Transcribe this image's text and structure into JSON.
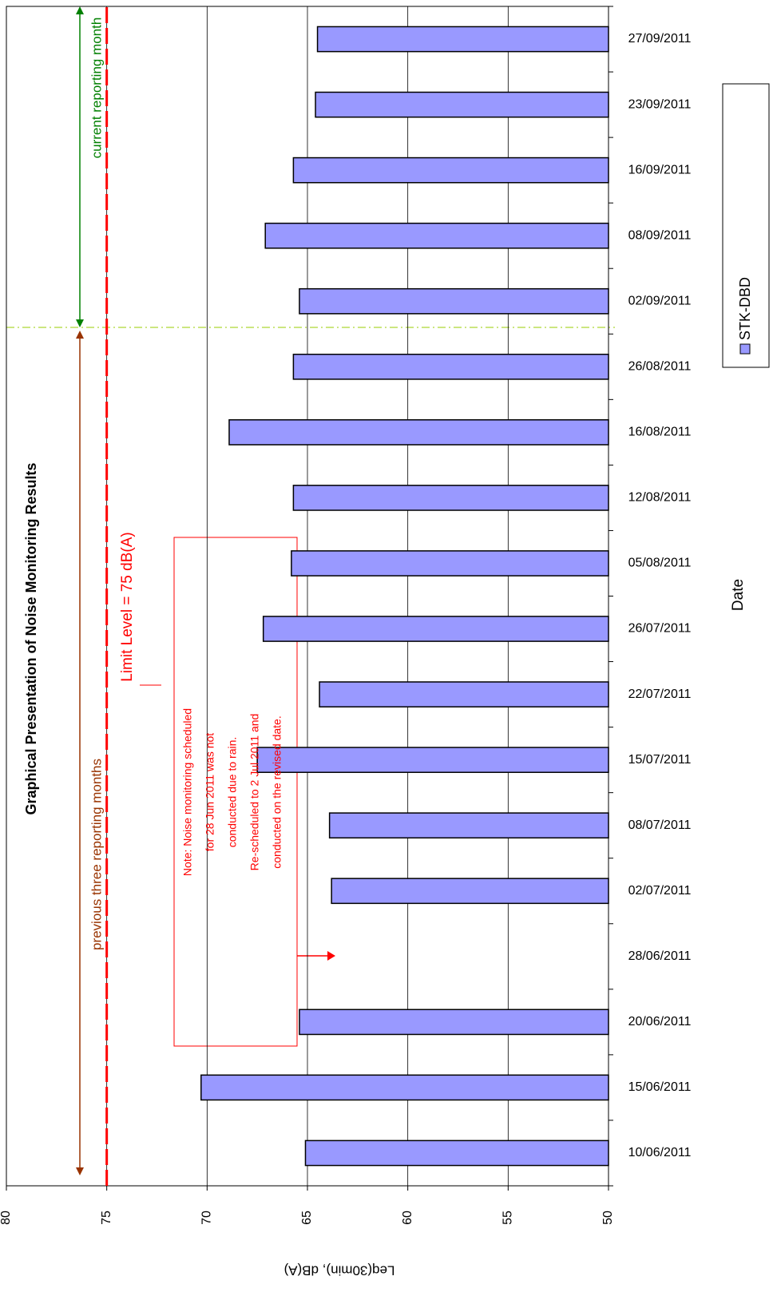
{
  "chart_data": {
    "type": "bar",
    "title": "Graphical Presentation of Noise Monitoring Results",
    "xlabel": "Date",
    "ylabel": "Leq(30min),  dB(A)",
    "categories": [
      "10/06/2011",
      "15/06/2011",
      "20/06/2011",
      "28/06/2011",
      "02/07/2011",
      "08/07/2011",
      "15/07/2011",
      "22/07/2011",
      "26/07/2011",
      "05/08/2011",
      "12/08/2011",
      "16/08/2011",
      "26/08/2011",
      "02/09/2011",
      "08/09/2011",
      "16/09/2011",
      "23/09/2011",
      "27/09/2011"
    ],
    "series": [
      {
        "name": "STK-DBD",
        "color": "#9999ff",
        "values": [
          65.1,
          70.3,
          65.4,
          null,
          63.8,
          63.9,
          67.5,
          64.4,
          67.2,
          65.8,
          65.7,
          68.9,
          65.7,
          65.4,
          67.1,
          65.7,
          64.6,
          64.5
        ]
      }
    ],
    "ylim": [
      50,
      80
    ],
    "yticks": [
      50,
      55,
      60,
      65,
      70,
      75,
      80
    ],
    "grid": true,
    "limit": 75,
    "limit_color": "#ff0000",
    "limit_label": "Limit Level = 75 dB(A)",
    "note": [
      "Note: Noise monitoring scheduled",
      "for 28 Jun 2011 was not",
      "conducted due to rain.",
      "Re-scheduled to 2 Jul 2011 and",
      "conducted on the revised date."
    ],
    "previous_period_label": "previous three reporting months",
    "current_period_label": "current reporting month"
  }
}
